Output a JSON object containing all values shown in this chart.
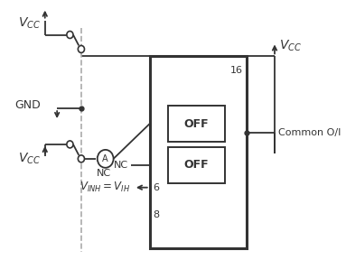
{
  "bg_color": "#ffffff",
  "line_color": "#333333",
  "dashed_color": "#aaaaaa",
  "fig_width": 3.83,
  "fig_height": 2.88,
  "dpi": 100,
  "common_label": "Common O/I",
  "nc_label": "NC",
  "pin16_label": "16",
  "pin6_label": "6",
  "pin8_label": "8",
  "off_label": "OFF"
}
